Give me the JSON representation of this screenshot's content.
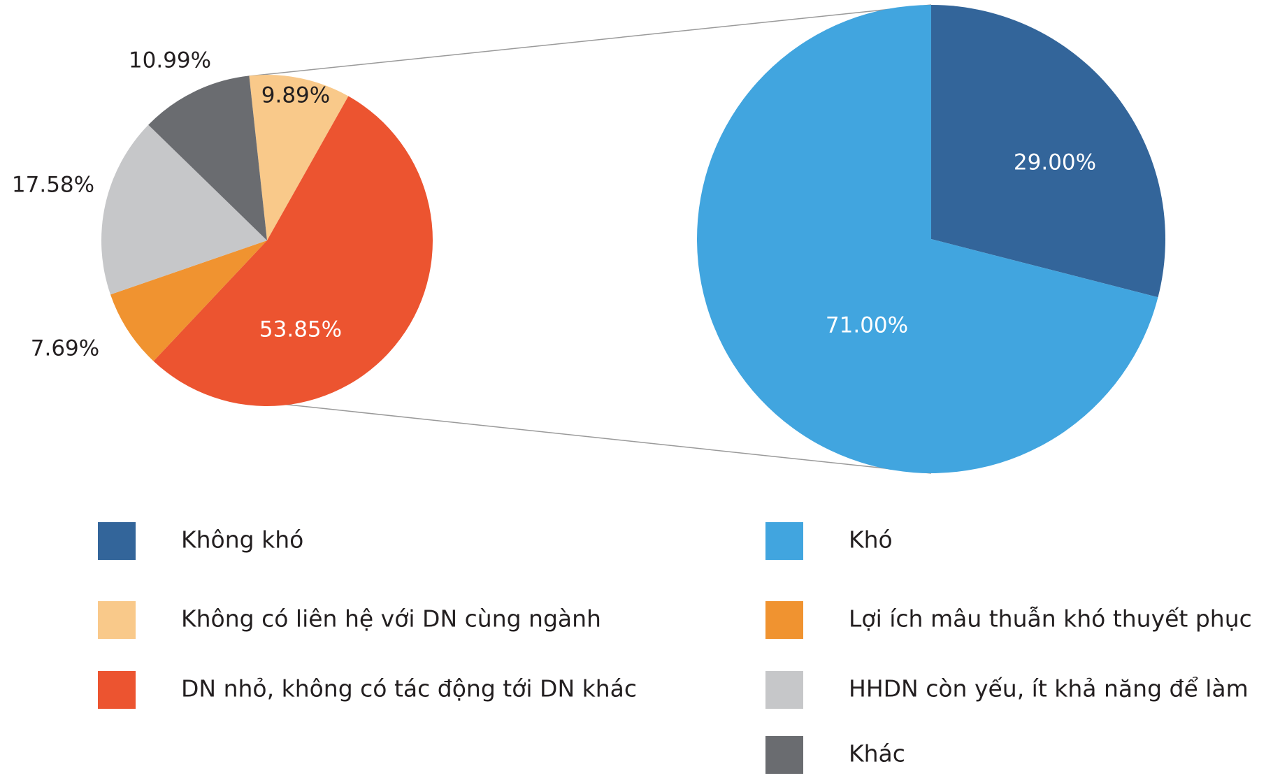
{
  "chart_data": [
    {
      "type": "pie",
      "categories": [
        "Không có liên hệ với DN cùng ngành",
        "DN nhỏ, không có tác động tới DN khác",
        "Lợi ích mâu thuẫn khó thuyết phục",
        "HHDN còn yếu, ít khả năng để làm",
        "Khác"
      ],
      "values": [
        9.89,
        53.85,
        7.69,
        17.58,
        10.99
      ],
      "value_labels": [
        "9.89%",
        "53.85%",
        "7.69%",
        "17.58%",
        "10.99%"
      ],
      "colors": [
        "#f9c98a",
        "#ec5430",
        "#f09330",
        "#c6c7c9",
        "#6a6c70"
      ]
    },
    {
      "type": "pie",
      "categories": [
        "Không khó",
        "Khó"
      ],
      "values": [
        29.0,
        71.0
      ],
      "value_labels": [
        "29.00%",
        "71.00%"
      ],
      "colors": [
        "#33659a",
        "#41a5df"
      ]
    }
  ]
}
